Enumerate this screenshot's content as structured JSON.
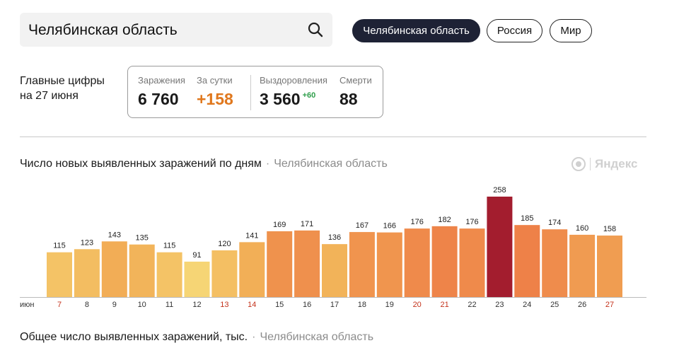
{
  "search": {
    "value": "Челябинская область"
  },
  "chips": [
    {
      "label": "Челябинская область",
      "active": true
    },
    {
      "label": "Россия",
      "active": false
    },
    {
      "label": "Мир",
      "active": false
    }
  ],
  "headline": {
    "line1": "Главные цифры",
    "line2": "на 27 июня"
  },
  "stats": {
    "infections": {
      "label": "Заражения",
      "value": "6 760"
    },
    "daily": {
      "label": "За сутки",
      "value": "+158"
    },
    "recovered": {
      "label": "Выздоровления",
      "value": "3 560",
      "delta": "+60"
    },
    "deaths": {
      "label": "Смерти",
      "value": "88"
    }
  },
  "chart_header": {
    "title": "Число новых выявленных заражений по дням",
    "separator": "·",
    "region": "Челябинская область"
  },
  "brand": {
    "name": "Яндекс"
  },
  "chart_data": {
    "type": "bar",
    "month_label": "июн",
    "categories": [
      "7",
      "8",
      "9",
      "10",
      "11",
      "12",
      "13",
      "14",
      "15",
      "16",
      "17",
      "18",
      "19",
      "20",
      "21",
      "22",
      "23",
      "24",
      "25",
      "26",
      "27"
    ],
    "values": [
      115,
      123,
      143,
      135,
      115,
      91,
      120,
      141,
      169,
      171,
      136,
      167,
      166,
      176,
      182,
      176,
      258,
      185,
      174,
      160,
      158
    ],
    "weekend_days": [
      "7",
      "13",
      "14",
      "20",
      "21",
      "27"
    ],
    "ylim": [
      0,
      258
    ],
    "value_labels": true,
    "colors": {
      "low": "#f6d575",
      "mid": "#f2b258",
      "high": "#ee8148",
      "peak": "#a31d2e",
      "weekend_tick": "#c4331c",
      "tick": "#333333"
    }
  },
  "total_header": {
    "title": "Общее число выявленных заражений, тыс.",
    "separator": "·",
    "region": "Челябинская область"
  }
}
